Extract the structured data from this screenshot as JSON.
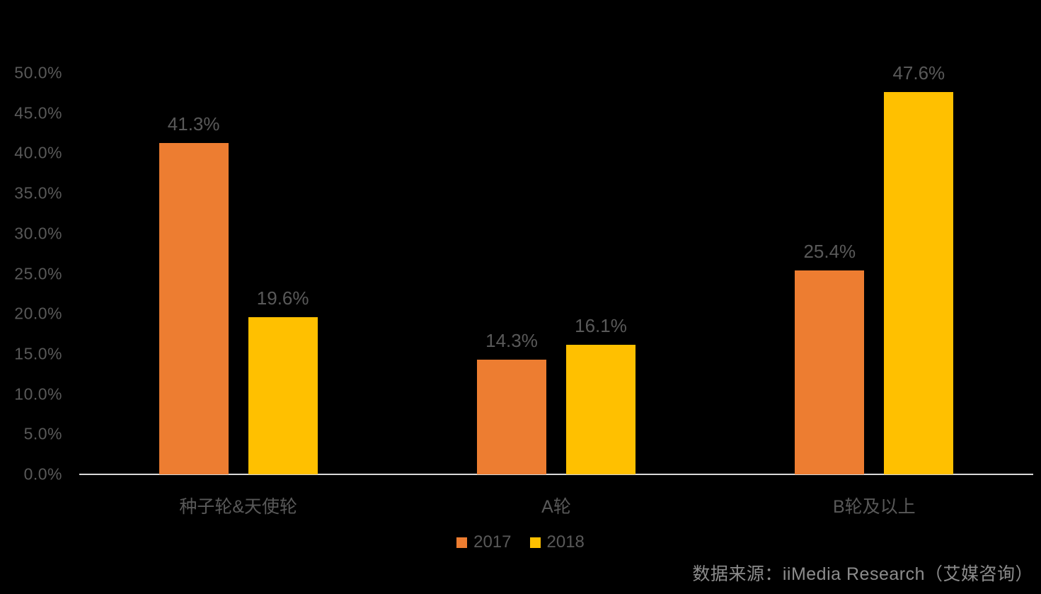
{
  "chart_data": {
    "type": "bar",
    "categories": [
      "种子轮&天使轮",
      "A轮",
      "B轮及以上"
    ],
    "series": [
      {
        "name": "2017",
        "color": "#ED7D31",
        "values": [
          41.3,
          14.3,
          25.4
        ]
      },
      {
        "name": "2018",
        "color": "#FFC000",
        "values": [
          19.6,
          16.1,
          47.6
        ]
      }
    ],
    "data_labels": [
      [
        "41.3%",
        "14.3%",
        "25.4%"
      ],
      [
        "19.6%",
        "16.1%",
        "47.6%"
      ]
    ],
    "title": "",
    "xlabel": "",
    "ylabel": "",
    "ylim": [
      0,
      50
    ],
    "y_ticks": [
      "50.0%",
      "45.0%",
      "40.0%",
      "35.0%",
      "30.0%",
      "25.0%",
      "20.0%",
      "15.0%",
      "10.0%",
      "5.0%",
      "0.0%"
    ],
    "grid": false,
    "legend_position": "bottom",
    "background_color": "#000000",
    "label_color": "#595959",
    "axis_line_color": "#D9D9D9"
  },
  "legend": {
    "items": [
      {
        "label": "2017",
        "color": "#ED7D31"
      },
      {
        "label": "2018",
        "color": "#FFC000"
      }
    ]
  },
  "source": {
    "text": "数据来源：iiMedia Research（艾媒咨询）"
  }
}
